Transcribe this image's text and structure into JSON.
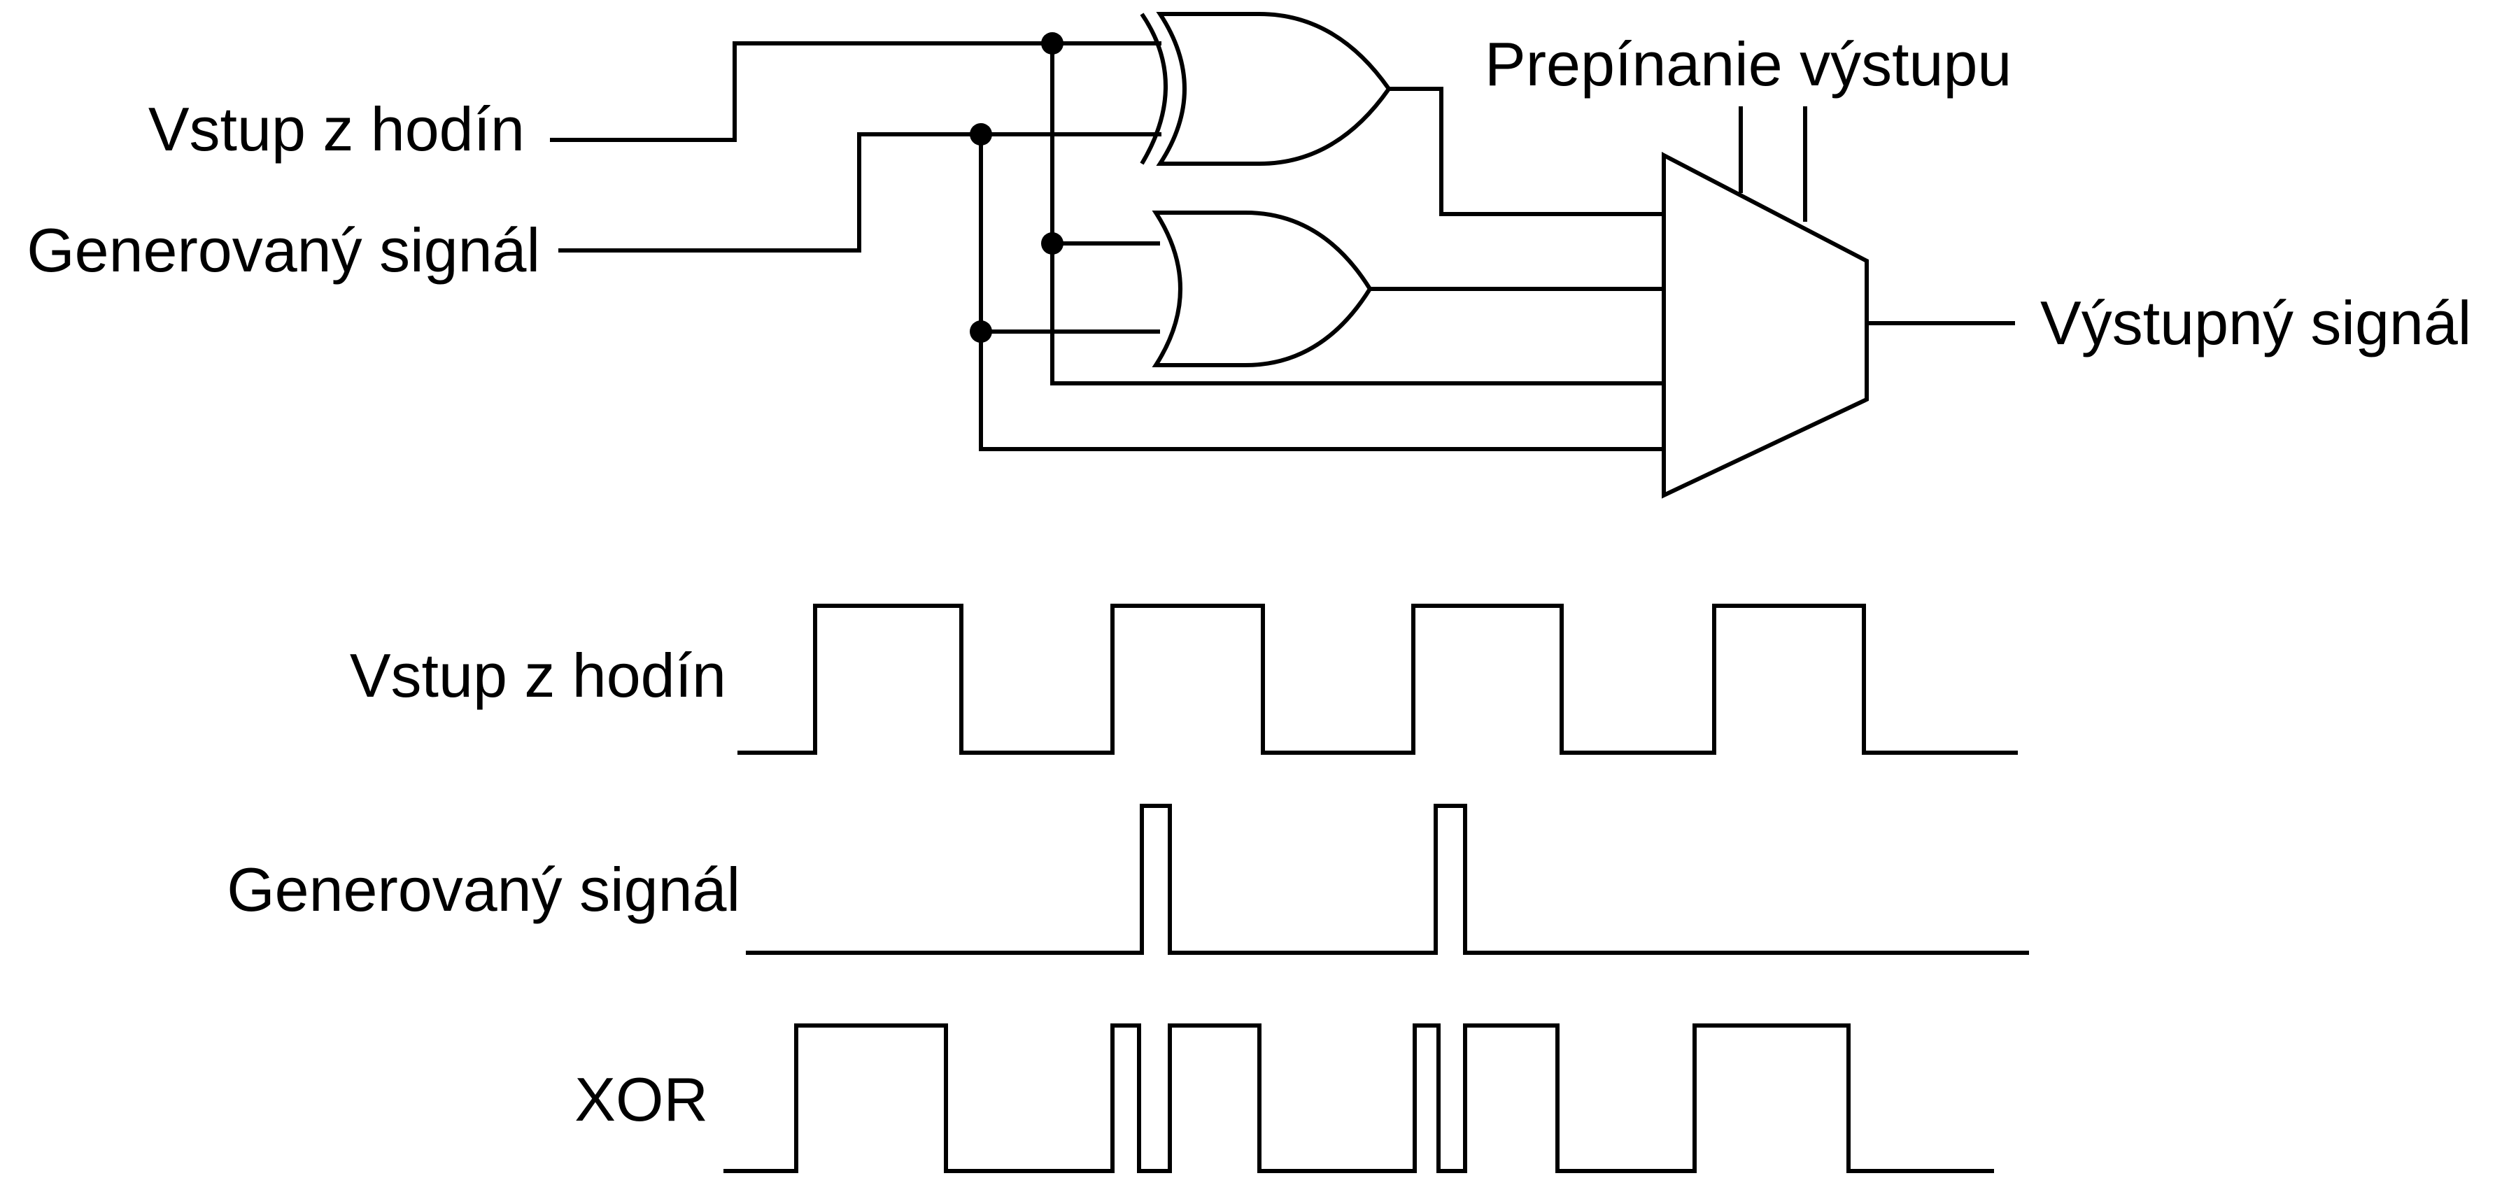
{
  "circuit": {
    "labels": {
      "clock_input": "Vstup z hodín",
      "generated_signal": "Generovaný signál",
      "output_switch": "Prepínanie výstupu",
      "output_signal": "Výstupný signál"
    }
  },
  "timing": {
    "clock": {
      "label": "Vstup z hodín",
      "levels": [
        0,
        1,
        0,
        1,
        0,
        1,
        0,
        1,
        0
      ]
    },
    "generated": {
      "label": "Generovaný signál",
      "levels": [
        0,
        1,
        0,
        1,
        0
      ]
    },
    "xor": {
      "label": "XOR",
      "levels": [
        0,
        1,
        0,
        1,
        0,
        1,
        0,
        1,
        0,
        1,
        0,
        1,
        0
      ]
    }
  },
  "colors": {
    "line": "#000000",
    "background": "#ffffff"
  }
}
